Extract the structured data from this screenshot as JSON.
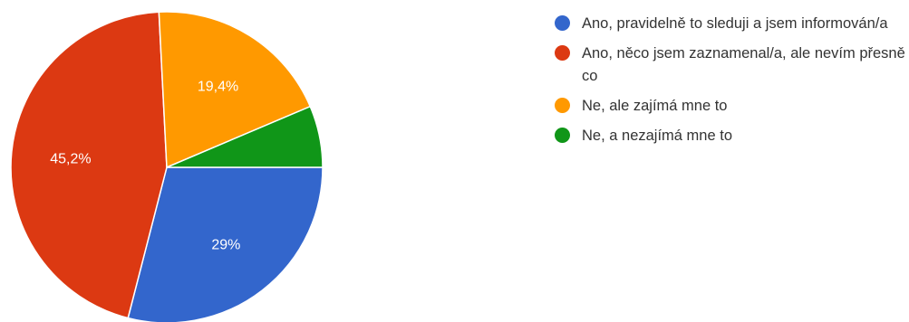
{
  "chart_data": {
    "type": "pie",
    "slices": [
      {
        "label": "Ano, pravidelně to sleduji a jsem informován/a",
        "value": 29,
        "value_label": "29%",
        "color": "#3366cc"
      },
      {
        "label": "Ano, něco jsem zaznamenal/a, ale nevím přesně co",
        "value": 45.2,
        "value_label": "45,2%",
        "color": "#dc3912"
      },
      {
        "label": "Ne, ale zajímá mne to",
        "value": 19.4,
        "value_label": "19,4%",
        "color": "#ff9900"
      },
      {
        "label": "Ne, a nezajímá mne to",
        "value": 6.4,
        "value_label": "",
        "color": "#109618"
      }
    ],
    "legend_position": "right"
  },
  "legend": {
    "items": [
      {
        "label": "Ano, pravidelně to sleduji a jsem informován/a",
        "color": "#3366cc"
      },
      {
        "label": "Ano, něco jsem zaznamenal/a, ale nevím přesně co",
        "color": "#dc3912"
      },
      {
        "label": "Ne, ale zajímá mne to",
        "color": "#ff9900"
      },
      {
        "label": "Ne, a nezajímá mne to",
        "color": "#109618"
      }
    ]
  }
}
